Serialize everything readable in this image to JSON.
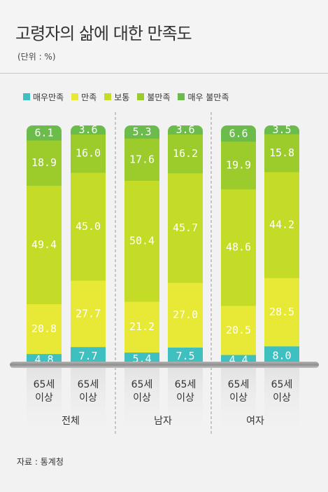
{
  "title": "고령자의 삶에 대한 만족도",
  "unit": "(단위 : %)",
  "source": "자료 : 통계청",
  "legend": [
    {
      "label": "매우만족",
      "color": "#3ec0c0"
    },
    {
      "label": "만족",
      "color": "#e8e836"
    },
    {
      "label": "보통",
      "color": "#c4dc28"
    },
    {
      "label": "불만족",
      "color": "#9ccc2c"
    },
    {
      "label": "매우 불만족",
      "color": "#6cbc4c"
    }
  ],
  "chart_data": {
    "type": "bar",
    "stacked": true,
    "groups": [
      "전체",
      "남자",
      "여자"
    ],
    "categories": [
      "65세 이상",
      "65세 이상",
      "65세 이상",
      "65세 이상",
      "65세 이상",
      "65세 이상"
    ],
    "category_lines": [
      [
        "65세",
        "이상"
      ],
      [
        "65세",
        "이상"
      ],
      [
        "65세",
        "이상"
      ],
      [
        "65세",
        "이상"
      ],
      [
        "65세",
        "이상"
      ],
      [
        "65세",
        "이상"
      ]
    ],
    "series": [
      {
        "name": "매우만족",
        "color": "#3ec0c0",
        "values": [
          4.8,
          7.7,
          5.4,
          7.5,
          4.4,
          8.0
        ]
      },
      {
        "name": "만족",
        "color": "#e8e836",
        "values": [
          20.8,
          27.7,
          21.2,
          27.0,
          20.5,
          28.5
        ]
      },
      {
        "name": "보통",
        "color": "#c4dc28",
        "values": [
          49.4,
          45.0,
          50.4,
          45.7,
          48.6,
          44.2
        ]
      },
      {
        "name": "불만족",
        "color": "#9ccc2c",
        "values": [
          18.9,
          16.0,
          17.6,
          16.2,
          19.9,
          15.8
        ]
      },
      {
        "name": "매우 불만족",
        "color": "#6cbc4c",
        "values": [
          6.1,
          3.6,
          5.3,
          3.6,
          6.6,
          3.5
        ]
      }
    ],
    "value_labels": [
      [
        "4.8",
        "7.7",
        "5.4",
        "7.5",
        "4.4",
        "8.0"
      ],
      [
        "20.8",
        "27.7",
        "21.2",
        "27.0",
        "20.5",
        "28.5"
      ],
      [
        "49.4",
        "45.0",
        "50.4",
        "45.7",
        "48.6",
        "44.2"
      ],
      [
        "18.9",
        "16.0",
        "17.6",
        "16.2",
        "19.9",
        "15.8"
      ],
      [
        "6.1",
        "3.6",
        "5.3",
        "3.6",
        "6.6",
        "3.5"
      ]
    ],
    "ylim": [
      0,
      100
    ],
    "grid": false,
    "legend_position": "top-left"
  }
}
